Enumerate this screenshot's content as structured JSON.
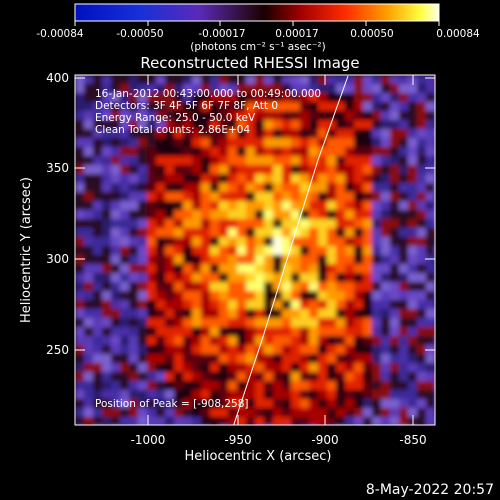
{
  "title": "Reconstructed RHESSI Image",
  "overlay_lines": [
    "16-Jan-2012 00:43:00.000 to 00:49:00.000",
    "Detectors: 3F 4F 5F 6F 7F 8F, Att 0",
    "Energy Range: 25.0 - 50.0 keV",
    "Clean    Total counts: 2.86E+04"
  ],
  "peak_label": "Position of Peak = [-908,258]",
  "x_axis_label": "Heliocentric X (arcsec)",
  "y_axis_label": "Heliocentric Y (arcsec)",
  "x_ticks": [
    "-1000",
    "-950",
    "-900",
    "-850"
  ],
  "y_ticks": [
    "400",
    "350",
    "300",
    "250"
  ],
  "colorbar": {
    "tick_labels": [
      "-0.00084",
      "-0.00050",
      "-0.00017",
      "0.00017",
      "0.00050",
      "0.00084"
    ],
    "unit_label": "(photons cm⁻² s⁻¹ asec⁻²)"
  },
  "timestamp": "8-May-2022 20:57",
  "colors": {
    "background": "#000000",
    "text": "#ffffff"
  }
}
